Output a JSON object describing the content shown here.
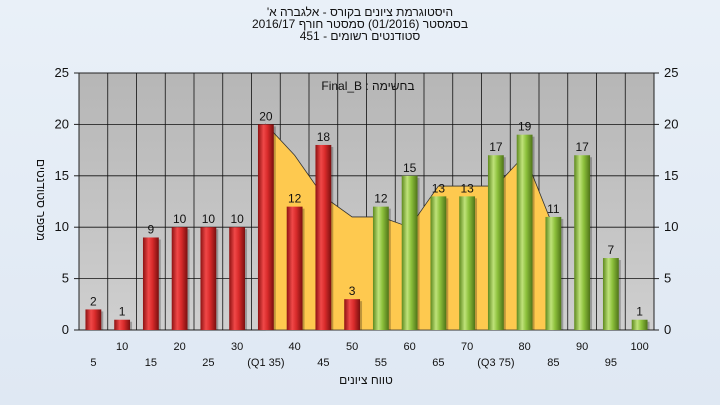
{
  "chart_data": {
    "type": "bar",
    "title": "היסטוגרמת ציונים בקורס - אלגברה א'",
    "subtitle1": "בסמסטר (01/2016) סמסטר חורף 2016/17",
    "subtitle2": "סטודנטים רשומים - 451",
    "annotation": "בחשימה : Final_B",
    "xlabel": "טווח ציונים",
    "ylabel": "מספר סטודנטים",
    "ylim": [
      0,
      25
    ],
    "yticks": [
      0,
      5,
      10,
      15,
      20,
      25
    ],
    "grid": true,
    "categories": [
      "5",
      "10",
      "15",
      "20",
      "25",
      "30",
      "(Q1 35)",
      "40",
      "45",
      "50",
      "55",
      "60",
      "65",
      "70",
      "(Q3 75)",
      "80",
      "85",
      "90",
      "95",
      "100"
    ],
    "values": [
      2,
      1,
      9,
      10,
      10,
      10,
      20,
      12,
      18,
      3,
      12,
      15,
      13,
      13,
      17,
      19,
      11,
      17,
      7,
      1
    ],
    "bar_colors": [
      "red",
      "red",
      "red",
      "red",
      "red",
      "red",
      "red",
      "red",
      "red",
      "red",
      "green",
      "green",
      "green",
      "green",
      "green",
      "green",
      "green",
      "green",
      "green",
      "green"
    ],
    "area_values": [
      null,
      null,
      null,
      null,
      null,
      null,
      20,
      17,
      13,
      11,
      11,
      10,
      14,
      14,
      14,
      17,
      10,
      null,
      null,
      null
    ],
    "colors": {
      "plot_bg": "#c0c0c0",
      "red_bar": "#d92b2b",
      "green_bar": "#8dc13c",
      "area": "#fec94f"
    }
  }
}
